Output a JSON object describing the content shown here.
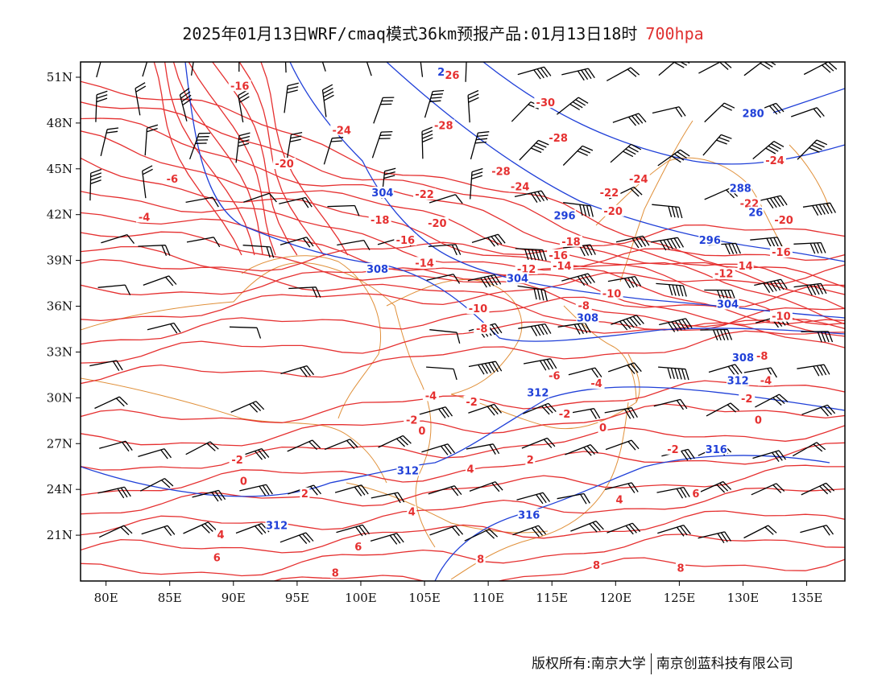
{
  "title": {
    "main": "2025年01月13日WRF/cmaq模式36km预报产品:01月13日18时",
    "level": "700hpa"
  },
  "footer": {
    "left": "版权所有:南京大学",
    "right": "南京创蓝科技有限公司"
  },
  "colors": {
    "temperature": "#e53030",
    "geopotential": "#2040d8",
    "borders": "#e0903a",
    "wind": "#000000"
  },
  "map": {
    "lon_range": [
      78,
      138
    ],
    "lat_range": [
      18,
      52
    ],
    "lon_ticks": [
      "80E",
      "85E",
      "90E",
      "95E",
      "100E",
      "105E",
      "110E",
      "115E",
      "120E",
      "125E",
      "130E",
      "135E"
    ],
    "lat_ticks": [
      "51N",
      "48N",
      "45N",
      "42N",
      "39N",
      "36N",
      "33N",
      "30N",
      "27N",
      "24N",
      "21N"
    ],
    "temp_labels": [
      {
        "t": "-16",
        "lon": 90.5,
        "lat": 50.3
      },
      {
        "t": "-26",
        "lon": 107,
        "lat": 51
      },
      {
        "t": "-24",
        "lon": 98.5,
        "lat": 47.4
      },
      {
        "t": "-28",
        "lon": 106.5,
        "lat": 47.7
      },
      {
        "t": "-30",
        "lon": 114.5,
        "lat": 49.2
      },
      {
        "t": "-28",
        "lon": 115.5,
        "lat": 46.9
      },
      {
        "t": "-20",
        "lon": 94,
        "lat": 45.2
      },
      {
        "t": "-6",
        "lon": 85.2,
        "lat": 44.2
      },
      {
        "t": "-28",
        "lon": 111,
        "lat": 44.7
      },
      {
        "t": "-24",
        "lon": 112.5,
        "lat": 43.7
      },
      {
        "t": "-22",
        "lon": 105,
        "lat": 43.2
      },
      {
        "t": "-22",
        "lon": 119.5,
        "lat": 43.3
      },
      {
        "t": "-24",
        "lon": 132.5,
        "lat": 45.4
      },
      {
        "t": "-22",
        "lon": 130.5,
        "lat": 42.6
      },
      {
        "t": "-4",
        "lon": 83,
        "lat": 41.7
      },
      {
        "t": "-18",
        "lon": 101.5,
        "lat": 41.5
      },
      {
        "t": "-20",
        "lon": 106,
        "lat": 41.3
      },
      {
        "t": "-20",
        "lon": 119.8,
        "lat": 42.1
      },
      {
        "t": "-20",
        "lon": 133.2,
        "lat": 41.5
      },
      {
        "t": "-16",
        "lon": 103.5,
        "lat": 40.2
      },
      {
        "t": "-18",
        "lon": 116.5,
        "lat": 40.1
      },
      {
        "t": "-16",
        "lon": 133,
        "lat": 39.4
      },
      {
        "t": "-14",
        "lon": 105,
        "lat": 38.7
      },
      {
        "t": "-16",
        "lon": 115.5,
        "lat": 39.2
      },
      {
        "t": "-12",
        "lon": 113,
        "lat": 38.3
      },
      {
        "t": "-14",
        "lon": 115.8,
        "lat": 38.5
      },
      {
        "t": "-12",
        "lon": 128.5,
        "lat": 38
      },
      {
        "t": "14",
        "lon": 130.2,
        "lat": 38.5
      },
      {
        "t": "-10",
        "lon": 119.7,
        "lat": 36.7
      },
      {
        "t": "-10",
        "lon": 109.2,
        "lat": 35.7
      },
      {
        "t": "-8",
        "lon": 117.5,
        "lat": 35.9
      },
      {
        "t": "-10",
        "lon": 133,
        "lat": 35.2
      },
      {
        "t": "-8",
        "lon": 109.5,
        "lat": 34.4
      },
      {
        "t": "-8",
        "lon": 131.5,
        "lat": 32.6
      },
      {
        "t": "-6",
        "lon": 115.2,
        "lat": 31.3
      },
      {
        "t": "-4",
        "lon": 118.5,
        "lat": 30.8
      },
      {
        "t": "-4",
        "lon": 131.8,
        "lat": 31
      },
      {
        "t": "-4",
        "lon": 105.5,
        "lat": 30
      },
      {
        "t": "-2",
        "lon": 108.7,
        "lat": 29.6
      },
      {
        "t": "-2",
        "lon": 130.3,
        "lat": 29.8
      },
      {
        "t": "-2",
        "lon": 104,
        "lat": 28.4
      },
      {
        "t": "-2",
        "lon": 116,
        "lat": 28.8
      },
      {
        "t": "0",
        "lon": 104.8,
        "lat": 27.7
      },
      {
        "t": "0",
        "lon": 119,
        "lat": 27.9
      },
      {
        "t": "0",
        "lon": 131.2,
        "lat": 28.4
      },
      {
        "t": "-2",
        "lon": 90.3,
        "lat": 25.8
      },
      {
        "t": "-2",
        "lon": 124.5,
        "lat": 26.5
      },
      {
        "t": "2",
        "lon": 113.3,
        "lat": 25.8
      },
      {
        "t": "4",
        "lon": 108.6,
        "lat": 25.2
      },
      {
        "t": "0",
        "lon": 90.8,
        "lat": 24.4
      },
      {
        "t": "2",
        "lon": 95.6,
        "lat": 23.6
      },
      {
        "t": "6",
        "lon": 126.3,
        "lat": 23.6
      },
      {
        "t": "4",
        "lon": 120.3,
        "lat": 23.2
      },
      {
        "t": "4",
        "lon": 104,
        "lat": 22.4
      },
      {
        "t": "4",
        "lon": 89,
        "lat": 20.9
      },
      {
        "t": "6",
        "lon": 99.8,
        "lat": 20.1
      },
      {
        "t": "6",
        "lon": 88.7,
        "lat": 19.4
      },
      {
        "t": "8",
        "lon": 109.4,
        "lat": 19.3
      },
      {
        "t": "8",
        "lon": 118.5,
        "lat": 18.9
      },
      {
        "t": "8",
        "lon": 125.1,
        "lat": 18.7
      },
      {
        "t": "8",
        "lon": 98,
        "lat": 18.4
      },
      {
        "t": "-24",
        "lon": 121.8,
        "lat": 44.2
      }
    ],
    "height_labels": [
      {
        "t": "2",
        "lon": 106.3,
        "lat": 51.2
      },
      {
        "t": "280",
        "lon": 130.8,
        "lat": 48.5
      },
      {
        "t": "304",
        "lon": 101.7,
        "lat": 43.3
      },
      {
        "t": "288",
        "lon": 129.8,
        "lat": 43.6
      },
      {
        "t": "26",
        "lon": 131,
        "lat": 42
      },
      {
        "t": "296",
        "lon": 116,
        "lat": 41.8
      },
      {
        "t": "296",
        "lon": 127.4,
        "lat": 40.2
      },
      {
        "t": "308",
        "lon": 101.3,
        "lat": 38.3
      },
      {
        "t": "304",
        "lon": 112.3,
        "lat": 37.7
      },
      {
        "t": "304",
        "lon": 128.8,
        "lat": 36
      },
      {
        "t": "308",
        "lon": 117.8,
        "lat": 35.1
      },
      {
        "t": "308",
        "lon": 130,
        "lat": 32.5
      },
      {
        "t": "312",
        "lon": 113.9,
        "lat": 30.2
      },
      {
        "t": "312",
        "lon": 129.6,
        "lat": 31
      },
      {
        "t": "316",
        "lon": 127.9,
        "lat": 26.5
      },
      {
        "t": "312",
        "lon": 103.7,
        "lat": 25.1
      },
      {
        "t": "316",
        "lon": 113.2,
        "lat": 22.2
      },
      {
        "t": "312",
        "lon": 93.4,
        "lat": 21.5
      }
    ]
  }
}
